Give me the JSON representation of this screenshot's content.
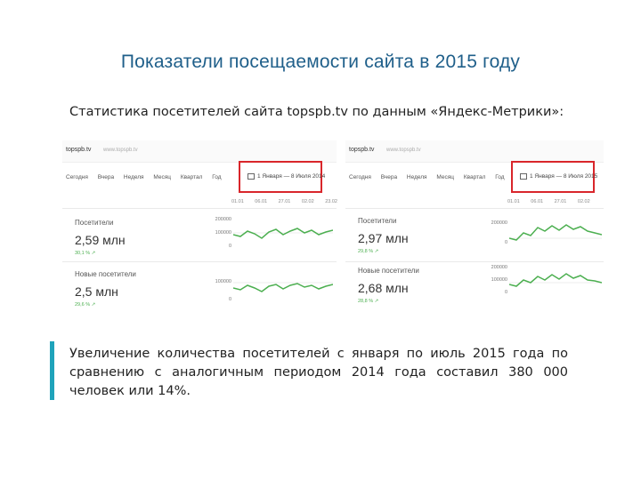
{
  "title": "Показатели посещаемости сайта в 2015 году",
  "subtitle": "Статистика посетителей сайта topspb.tv по данным «Яндекс-Метрики»:",
  "body_text": "Увеличение количества посетителей с января по июль 2015 года по сравнению с аналогичным периодом 2014 года составил 380 000 человек или 14%.",
  "colors": {
    "title": "#1f5f8a",
    "accent_bar": "#1fa3ba",
    "highlight": "#d9262b",
    "line": "#4caf50"
  },
  "screenshots": [
    {
      "site": "topspb.tv",
      "site_gray": "www.topspb.tv",
      "periods": [
        "Сегодня",
        "Вчера",
        "Неделя",
        "Месяц",
        "Квартал",
        "Год"
      ],
      "date_range": "1 Января — 8 Июля 2014",
      "x_ticks": [
        "01.01",
        "06.01",
        "27.01",
        "02.02",
        "23.02"
      ],
      "visitors": {
        "label": "Посетители",
        "value": "2,59 млн",
        "delta": "30,1 % ↗",
        "yticks": [
          "200000",
          "100000",
          "0"
        ]
      },
      "new_visitors": {
        "label": "Новые посетители",
        "value": "2,5 млн",
        "delta": "29,6 % ↗",
        "yticks": [
          "100000",
          "0"
        ]
      }
    },
    {
      "site": "topspb.tv",
      "site_gray": "www.topspb.tv",
      "periods": [
        "Сегодня",
        "Вчера",
        "Неделя",
        "Месяц",
        "Квартал",
        "Год"
      ],
      "date_range": "1 Января — 8 Июля 2015",
      "x_ticks": [
        "01.01",
        "06.01",
        "27.01",
        "02.02"
      ],
      "visitors": {
        "label": "Посетители",
        "value": "2,97 млн",
        "delta": "29,8 % ↗",
        "yticks": [
          "200000",
          "0"
        ]
      },
      "new_visitors": {
        "label": "Новые посетители",
        "value": "2,68 млн",
        "delta": "28,8 % ↗",
        "yticks": [
          "200000",
          "100000",
          "0"
        ]
      }
    }
  ]
}
